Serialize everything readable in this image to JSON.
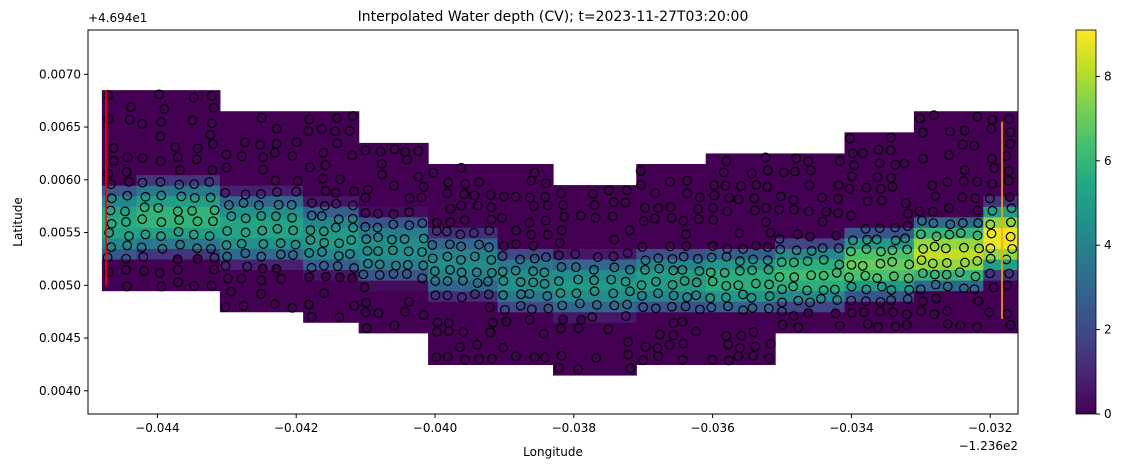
{
  "chart_data": {
    "type": "heatmap",
    "title": "Interpolated Water depth (CV); t=2023-11-27T03:20:00",
    "xlabel": "Longitude",
    "ylabel": "Latitude",
    "x_offset_label": "−1.236e2",
    "y_offset_label": "+4.694e1",
    "xlim": [
      -0.045,
      -0.0316
    ],
    "ylim": [
      0.00378,
      0.00742
    ],
    "x_ticks": [
      -0.044,
      -0.042,
      -0.04,
      -0.038,
      -0.036,
      -0.034,
      -0.032
    ],
    "x_tick_labels": [
      "−0.044",
      "−0.042",
      "−0.040",
      "−0.038",
      "−0.036",
      "−0.034",
      "−0.032"
    ],
    "y_ticks": [
      0.004,
      0.0045,
      0.005,
      0.0055,
      0.006,
      0.0065,
      0.007
    ],
    "y_tick_labels": [
      "0.0040",
      "0.0045",
      "0.0050",
      "0.0055",
      "0.0060",
      "0.0065",
      "0.0070"
    ],
    "colorbar": {
      "colormap": "viridis",
      "range": [
        0,
        9.1
      ],
      "ticks": [
        0,
        2,
        4,
        6,
        8
      ],
      "tick_labels": [
        "0",
        "2",
        "4",
        "6",
        "8"
      ]
    },
    "grid": false,
    "channel_columns": [
      {
        "x": [
          -0.0448,
          -0.0443
        ],
        "y": [
          0.00495,
          0.00685
        ],
        "center": 0.0056,
        "hw": 0.0004,
        "peak": 5.6
      },
      {
        "x": [
          -0.0443,
          -0.0431
        ],
        "y": [
          0.00495,
          0.00685
        ],
        "center": 0.00565,
        "hw": 0.0004,
        "peak": 6.0
      },
      {
        "x": [
          -0.0431,
          -0.0419
        ],
        "y": [
          0.00475,
          0.00665
        ],
        "center": 0.00555,
        "hw": 0.00038,
        "peak": 5.4
      },
      {
        "x": [
          -0.0419,
          -0.0411
        ],
        "y": [
          0.00465,
          0.00665
        ],
        "center": 0.00545,
        "hw": 0.00037,
        "peak": 5.0
      },
      {
        "x": [
          -0.0411,
          -0.0401
        ],
        "y": [
          0.00455,
          0.00635
        ],
        "center": 0.00535,
        "hw": 0.00036,
        "peak": 4.6
      },
      {
        "x": [
          -0.0401,
          -0.0391
        ],
        "y": [
          0.00425,
          0.00615
        ],
        "center": 0.0052,
        "hw": 0.00035,
        "peak": 4.4
      },
      {
        "x": [
          -0.0391,
          -0.0383
        ],
        "y": [
          0.00425,
          0.00615
        ],
        "center": 0.00505,
        "hw": 0.00033,
        "peak": 4.6
      },
      {
        "x": [
          -0.0383,
          -0.0371
        ],
        "y": [
          0.00415,
          0.00595
        ],
        "center": 0.005,
        "hw": 0.00032,
        "peak": 4.9
      },
      {
        "x": [
          -0.0371,
          -0.0361
        ],
        "y": [
          0.00425,
          0.00615
        ],
        "center": 0.00505,
        "hw": 0.00033,
        "peak": 5.2
      },
      {
        "x": [
          -0.0361,
          -0.0351
        ],
        "y": [
          0.00425,
          0.00625
        ],
        "center": 0.00505,
        "hw": 0.00035,
        "peak": 5.8
      },
      {
        "x": [
          -0.0351,
          -0.0341
        ],
        "y": [
          0.00455,
          0.00625
        ],
        "center": 0.0051,
        "hw": 0.00036,
        "peak": 6.2
      },
      {
        "x": [
          -0.0341,
          -0.0331
        ],
        "y": [
          0.00455,
          0.00645
        ],
        "center": 0.0052,
        "hw": 0.00037,
        "peak": 7.0
      },
      {
        "x": [
          -0.0331,
          -0.0321
        ],
        "y": [
          0.00455,
          0.00665
        ],
        "center": 0.0053,
        "hw": 0.00038,
        "peak": 8.2
      },
      {
        "x": [
          -0.0321,
          -0.0316
        ],
        "y": [
          0.00455,
          0.00665
        ],
        "center": 0.00545,
        "hw": 0.00038,
        "peak": 9.0
      }
    ],
    "transects": [
      {
        "x": -0.04474,
        "y": [
          0.005,
          0.00685
        ],
        "color": "#ff0000"
      },
      {
        "x": -0.03183,
        "y": [
          0.00468,
          0.00655
        ],
        "color": "#ffa500"
      }
    ],
    "scatter_marker_color": "#000000"
  }
}
